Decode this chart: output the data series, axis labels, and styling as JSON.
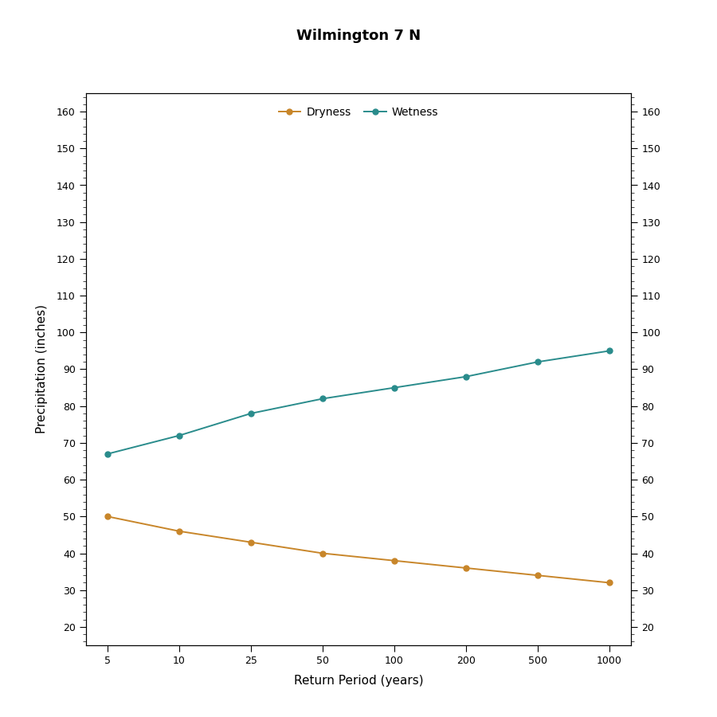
{
  "title1": "Wilmington 7 N",
  "xlabel": "Return Period (years)",
  "ylabel": "Precipitation (inches)",
  "x_values": [
    5,
    10,
    25,
    50,
    100,
    200,
    500,
    1000
  ],
  "x_positions": [
    0,
    1,
    2,
    3,
    4,
    5,
    6,
    7
  ],
  "dryness_values": [
    50,
    46,
    43,
    40,
    38,
    36,
    34,
    32
  ],
  "wetness_values": [
    67,
    72,
    78,
    82,
    85,
    88,
    92,
    95
  ],
  "dryness_color": "#C8862A",
  "wetness_color": "#2A8C8C",
  "ylim": [
    15,
    165
  ],
  "yticks": [
    20,
    30,
    40,
    50,
    60,
    70,
    80,
    90,
    100,
    110,
    120,
    130,
    140,
    150,
    160
  ],
  "background_color": "#FFFFFF",
  "plot_bg_color": "#FFFFFF",
  "legend_labels": [
    "Dryness",
    "Wetness"
  ],
  "title1_fontsize": 13,
  "title2_fontsize": 11,
  "axis_label_fontsize": 11,
  "tick_fontsize": 9,
  "legend_fontsize": 10,
  "line_width": 1.4,
  "marker_size": 5
}
